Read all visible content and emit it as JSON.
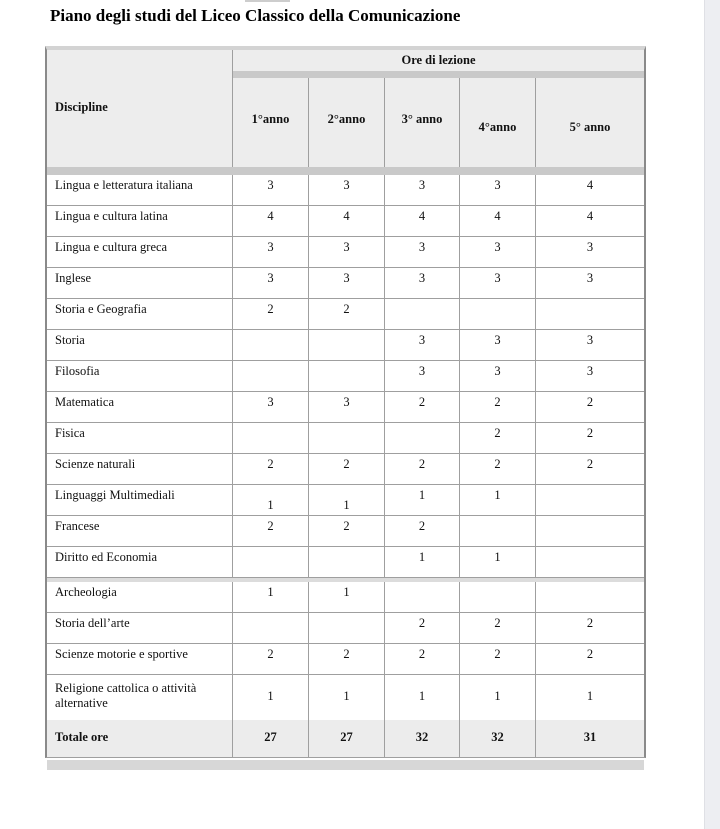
{
  "page": {
    "title": "Piano degli studi del Liceo Classico della Comunicazione"
  },
  "table": {
    "corner_header": "Discipline",
    "group_header": "Ore di lezione",
    "year_headers": [
      "1°anno",
      "2°anno",
      "3° anno",
      "4°anno",
      "5° anno"
    ],
    "rows": [
      {
        "label": "Lingua e letteratura italiana",
        "values": [
          "3",
          "3",
          "3",
          "3",
          "4"
        ]
      },
      {
        "label": "Lingua e cultura latina",
        "values": [
          "4",
          "4",
          "4",
          "4",
          "4"
        ]
      },
      {
        "label": "Lingua e cultura greca",
        "values": [
          "3",
          "3",
          "3",
          "3",
          "3"
        ]
      },
      {
        "label": "Inglese",
        "values": [
          "3",
          "3",
          "3",
          "3",
          "3"
        ]
      },
      {
        "label": "Storia e Geografia",
        "values": [
          "2",
          "2",
          "",
          "",
          ""
        ]
      },
      {
        "label": "Storia",
        "values": [
          "",
          "",
          "3",
          "3",
          "3"
        ]
      },
      {
        "label": "Filosofia",
        "values": [
          "",
          "",
          "3",
          "3",
          "3"
        ]
      },
      {
        "label": "Matematica",
        "values": [
          "3",
          "3",
          "2",
          "2",
          "2"
        ]
      },
      {
        "label": "Fisica",
        "values": [
          "",
          "",
          "",
          "2",
          "2"
        ]
      },
      {
        "label": "Scienze naturali",
        "values": [
          "2",
          "2",
          "2",
          "2",
          "2"
        ]
      },
      {
        "label": "Linguaggi Multimediali",
        "values": [
          "1",
          "1",
          "1",
          "1",
          ""
        ]
      },
      {
        "label": "Francese",
        "values": [
          "2",
          "2",
          "2",
          "",
          ""
        ]
      },
      {
        "label": "Diritto ed Economia",
        "values": [
          "",
          "",
          "1",
          "1",
          ""
        ]
      },
      {
        "label": "Archeologia",
        "values": [
          "1",
          "1",
          "",
          "",
          ""
        ]
      },
      {
        "label": "Storia dell’arte",
        "values": [
          "",
          "",
          "2",
          "2",
          "2"
        ]
      },
      {
        "label": "Scienze motorie e sportive",
        "values": [
          "2",
          "2",
          "2",
          "2",
          "2"
        ]
      },
      {
        "label": "Religione cattolica o attività alternative",
        "values": [
          "1",
          "1",
          "1",
          "1",
          "1"
        ]
      }
    ],
    "total_row": {
      "label": "Totale ore",
      "values": [
        "27",
        "27",
        "32",
        "32",
        "31"
      ]
    }
  }
}
